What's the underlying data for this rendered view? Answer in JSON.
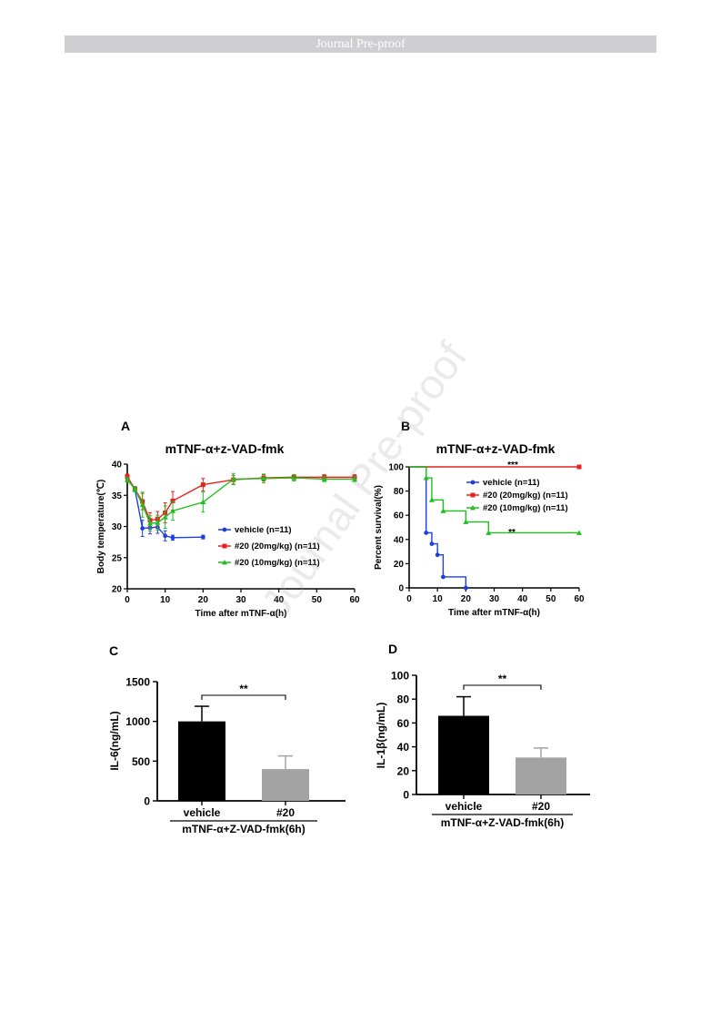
{
  "banner": "Journal Pre-proof",
  "watermark": "Journal Pre-proof",
  "colors": {
    "vehicle": "#1f3fe0",
    "dose20": "#e8231f",
    "dose10": "#1fbf1f",
    "bar_vehicle": "#000000",
    "bar_treated": "#a3a3a3"
  },
  "chart_data": [
    {
      "panel": "A",
      "type": "line",
      "title": "mTNF-α+z-VAD-fmk",
      "xlabel": "Time after mTNF-α(h)",
      "ylabel": "Body temperature(℃)",
      "xlim": [
        0,
        60
      ],
      "ylim": [
        20,
        40
      ],
      "xticks": [
        "0",
        "10",
        "20",
        "30",
        "40",
        "50",
        "60"
      ],
      "yticks": [
        "20",
        "25",
        "30",
        "35",
        "40"
      ],
      "legend": "inside-right",
      "series": [
        {
          "name": "vehicle (n=11)",
          "color": "vehicle",
          "x": [
            0,
            2,
            4,
            6,
            8,
            10,
            12,
            20
          ],
          "y": [
            37.8,
            36.0,
            29.7,
            29.8,
            29.9,
            28.5,
            28.2,
            28.3
          ],
          "err": [
            0.4,
            0.4,
            1.3,
            1.0,
            1.0,
            0.8,
            0.4,
            0.3
          ]
        },
        {
          "name": "#20 (20mg/kg)  (n=11)",
          "color": "dose20",
          "x": [
            0,
            2,
            4,
            6,
            8,
            10,
            12,
            20,
            28,
            36,
            44,
            52,
            60
          ],
          "y": [
            38.0,
            36.0,
            34.0,
            31.0,
            31.2,
            32.2,
            34.1,
            36.7,
            37.5,
            37.8,
            37.9,
            37.9,
            37.9
          ],
          "err": [
            0.4,
            0.4,
            1.3,
            1.2,
            1.2,
            1.6,
            1.5,
            1.0,
            0.7,
            0.5,
            0.4,
            0.4,
            0.4
          ]
        },
        {
          "name": "#20 (10mg/kg) (n=11)",
          "color": "dose10",
          "x": [
            0,
            2,
            4,
            6,
            8,
            10,
            12,
            20,
            28,
            36,
            44,
            52,
            60
          ],
          "y": [
            37.5,
            36.0,
            33.5,
            30.5,
            30.6,
            31.5,
            32.5,
            33.9,
            37.6,
            37.7,
            37.8,
            37.6,
            37.6
          ],
          "err": [
            0.4,
            0.4,
            2.0,
            1.2,
            1.2,
            1.8,
            1.5,
            1.6,
            0.9,
            0.7,
            0.5,
            0.4,
            0.4
          ]
        }
      ]
    },
    {
      "panel": "B",
      "type": "line",
      "title": "mTNF-α+z-VAD-fmk",
      "xlabel": "Time after mTNF-α(h)",
      "ylabel": "Percent survival(%)",
      "xlim": [
        0,
        60
      ],
      "ylim": [
        0,
        100
      ],
      "xticks": [
        "0",
        "10",
        "20",
        "30",
        "40",
        "50",
        "60"
      ],
      "yticks": [
        "0",
        "20",
        "40",
        "60",
        "80",
        "100"
      ],
      "legend": "top-right",
      "annotations": [
        "***",
        "**"
      ],
      "series": [
        {
          "name": "vehicle (n=11)",
          "color": "vehicle",
          "x": [
            0,
            6,
            8,
            10,
            12,
            20
          ],
          "y": [
            100,
            45.5,
            36.4,
            27.3,
            9.1,
            0
          ]
        },
        {
          "name": "#20  (20mg/kg) (n=11)",
          "color": "dose20",
          "x": [
            0,
            60
          ],
          "y": [
            100,
            100
          ]
        },
        {
          "name": "#20  (10mg/kg) (n=11)",
          "color": "dose10",
          "x": [
            0,
            6,
            8,
            12,
            20,
            28,
            60
          ],
          "y": [
            100,
            90.9,
            72.7,
            63.6,
            54.5,
            45.5,
            45.5
          ]
        }
      ]
    },
    {
      "panel": "C",
      "type": "bar",
      "categories": [
        "vehicle",
        "#20"
      ],
      "values": [
        1000,
        400
      ],
      "err": [
        190,
        165
      ],
      "xlabel": "mTNF-α+Z-VAD-fmk(6h)",
      "ylabel": "IL-6(ng/mL)",
      "ylim": [
        0,
        1500
      ],
      "yticks": [
        "0",
        "500",
        "1000",
        "1500"
      ],
      "annotations": [
        "**"
      ]
    },
    {
      "panel": "D",
      "type": "bar",
      "categories": [
        "vehicle",
        "#20"
      ],
      "values": [
        66,
        31
      ],
      "err": [
        16,
        8
      ],
      "xlabel": "mTNF-α+Z-VAD-fmk(6h)",
      "ylabel": "IL-1β(ng/mL)",
      "ylim": [
        0,
        100
      ],
      "yticks": [
        "0",
        "20",
        "40",
        "60",
        "80",
        "100"
      ],
      "annotations": [
        "**"
      ]
    }
  ]
}
